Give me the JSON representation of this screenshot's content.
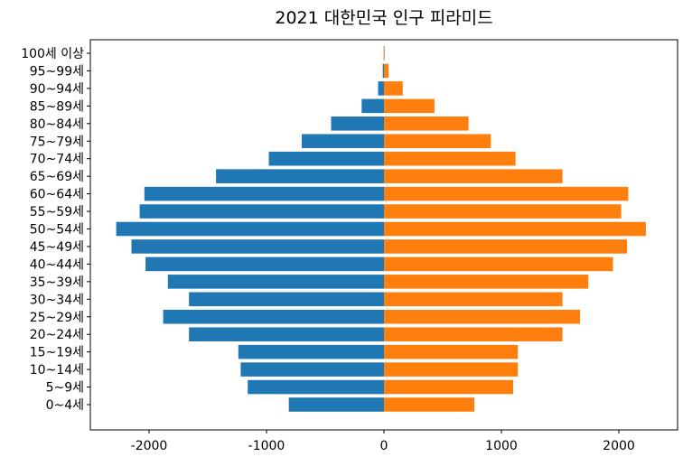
{
  "chart_data": {
    "type": "bar",
    "orientation": "horizontal",
    "title": "2021 대한민국 인구 피라미드",
    "xlabel": "",
    "ylabel": "",
    "xlim": [
      -2500,
      2500
    ],
    "xticks": [
      -2000,
      -1000,
      0,
      1000,
      2000
    ],
    "xtick_labels": [
      "-2000",
      "-1000",
      "0",
      "1000",
      "2000"
    ],
    "grid": false,
    "categories": [
      "0~4세",
      "5~9세",
      "10~14세",
      "15~19세",
      "20~24세",
      "25~29세",
      "30~34세",
      "35~39세",
      "40~44세",
      "45~49세",
      "50~54세",
      "55~59세",
      "60~64세",
      "65~69세",
      "70~74세",
      "75~79세",
      "80~84세",
      "85~89세",
      "90~94세",
      "95~99세",
      "100세 이상"
    ],
    "series": [
      {
        "color": "#1f77b4",
        "values": [
          -810,
          -1160,
          -1220,
          -1240,
          -1660,
          -1880,
          -1660,
          -1840,
          -2030,
          -2150,
          -2280,
          -2080,
          -2040,
          -1430,
          -980,
          -700,
          -450,
          -190,
          -50,
          -10,
          -2
        ]
      },
      {
        "color": "#ff7f0e",
        "values": [
          770,
          1100,
          1140,
          1140,
          1520,
          1670,
          1520,
          1740,
          1950,
          2070,
          2230,
          2020,
          2080,
          1520,
          1120,
          910,
          720,
          430,
          160,
          40,
          3
        ]
      }
    ]
  }
}
